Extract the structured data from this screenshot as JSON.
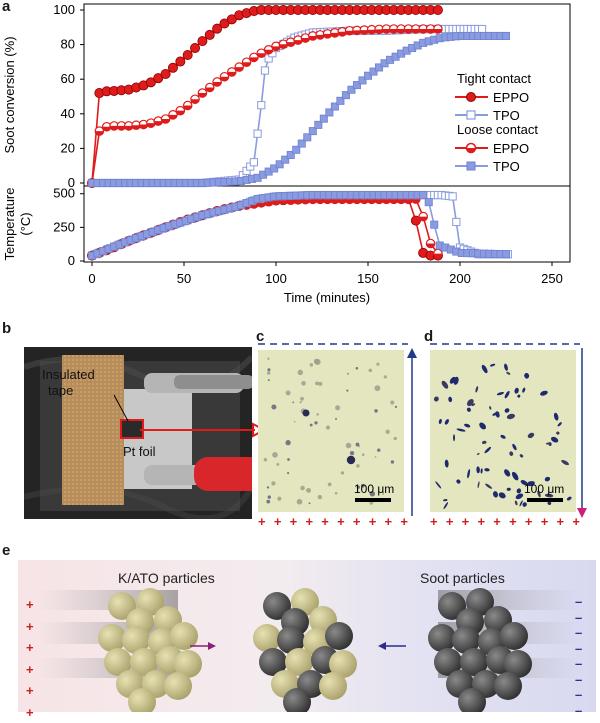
{
  "panels": {
    "a": {
      "letter": "a",
      "top": {
        "ylabel": "Soot conversion (%)",
        "yticks": [
          "0",
          "20",
          "40",
          "60",
          "80",
          "100"
        ]
      },
      "bottom": {
        "ylabel_line1": "Temperature",
        "ylabel_line2": "(°C)",
        "yticks": [
          "0",
          "250",
          "500"
        ]
      },
      "xlabel": "Time (minutes)",
      "xticks": [
        "0",
        "50",
        "100",
        "150",
        "200",
        "250"
      ],
      "legend": {
        "group1": "Tight contact",
        "group1_eppo": "EPPO",
        "group1_tpo": "TPO",
        "group2": "Loose contact",
        "group2_eppo": "EPPO",
        "group2_tpo": "TPO"
      }
    },
    "b": {
      "letter": "b",
      "label_tape_1": "Insulated",
      "label_tape_2": "tape",
      "label_foil": "Pt foil"
    },
    "c": {
      "letter": "c",
      "scale": "100 μm",
      "plus_signs": [
        "+",
        "+",
        "+",
        "+",
        "+",
        "+",
        "+",
        "+",
        "+",
        "+",
        "+",
        "+"
      ]
    },
    "d": {
      "letter": "d",
      "scale": "100 μm",
      "plus_signs": [
        "+",
        "+",
        "+",
        "+",
        "+",
        "+",
        "+",
        "+",
        "+",
        "+",
        "+",
        "+"
      ]
    },
    "e": {
      "letter": "e",
      "left_label": "K/ATO particles",
      "right_label": "Soot particles",
      "plus_signs": [
        "+",
        "+",
        "+",
        "+",
        "+",
        "+",
        "+"
      ],
      "minus_signs": [
        "–",
        "–",
        "–",
        "–",
        "–",
        "–",
        "–",
        "–"
      ]
    }
  },
  "colors": {
    "eppo": "#e01b1b",
    "tpo": "#8a9be0",
    "positive": "#cc1f1f",
    "negative": "#223a8a",
    "katoParticle": "#c9c28f",
    "sootParticle": "#505050"
  },
  "chart_data": [
    {
      "type": "line",
      "title": "",
      "xlabel": "Time (minutes)",
      "ylabel": "Soot conversion (%)",
      "xlim": [
        0,
        250
      ],
      "ylim": [
        0,
        100
      ],
      "series": [
        {
          "name": "EPPO",
          "group": "Tight contact",
          "x": [
            0,
            2,
            4,
            6,
            10,
            20,
            30,
            40,
            50,
            60,
            70,
            80,
            90,
            100,
            120,
            140,
            160,
            180,
            190
          ],
          "y": [
            0,
            42,
            52,
            53,
            53,
            54,
            57,
            63,
            72,
            82,
            91,
            97,
            100,
            100,
            100,
            100,
            100,
            100,
            100
          ]
        },
        {
          "name": "TPO",
          "group": "Tight contact",
          "x": [
            0,
            20,
            40,
            60,
            80,
            88,
            92,
            94,
            96,
            100,
            110,
            120,
            140,
            160,
            180,
            200,
            212
          ],
          "y": [
            0,
            0,
            0,
            0,
            2,
            12,
            45,
            65,
            72,
            78,
            84,
            87,
            88,
            88,
            89,
            89,
            89
          ]
        },
        {
          "name": "EPPO",
          "group": "Loose contact",
          "x": [
            0,
            2,
            4,
            6,
            10,
            20,
            30,
            40,
            50,
            60,
            70,
            80,
            90,
            100,
            120,
            140,
            160,
            180,
            190
          ],
          "y": [
            0,
            20,
            30,
            32,
            33,
            33,
            34,
            37,
            43,
            52,
            60,
            67,
            74,
            79,
            85,
            88,
            89,
            89,
            89
          ]
        },
        {
          "name": "TPO",
          "group": "Loose contact",
          "x": [
            0,
            40,
            60,
            80,
            90,
            100,
            110,
            120,
            130,
            140,
            150,
            160,
            170,
            180,
            190,
            200,
            210,
            226
          ],
          "y": [
            0,
            0,
            0,
            1,
            3,
            9,
            18,
            30,
            42,
            53,
            62,
            70,
            76,
            81,
            84,
            85,
            85,
            85
          ]
        }
      ]
    },
    {
      "type": "line",
      "title": "",
      "xlabel": "Time (minutes)",
      "ylabel": "Temperature (°C)",
      "xlim": [
        0,
        250
      ],
      "ylim": [
        0,
        550
      ],
      "series": [
        {
          "name": "EPPO",
          "group": "Tight contact",
          "x": [
            0,
            10,
            20,
            30,
            40,
            50,
            60,
            70,
            80,
            90,
            100,
            120,
            140,
            160,
            172,
            176,
            180,
            184,
            190
          ],
          "y": [
            40,
            90,
            150,
            200,
            250,
            300,
            340,
            380,
            410,
            430,
            450,
            460,
            460,
            460,
            460,
            300,
            60,
            40,
            40
          ]
        },
        {
          "name": "TPO",
          "group": "Tight contact",
          "x": [
            0,
            20,
            40,
            60,
            80,
            90,
            100,
            120,
            140,
            160,
            180,
            190,
            196,
            200,
            210,
            226
          ],
          "y": [
            40,
            150,
            250,
            340,
            410,
            460,
            480,
            490,
            490,
            490,
            490,
            490,
            480,
            100,
            50,
            50
          ]
        },
        {
          "name": "EPPO",
          "group": "Loose contact",
          "x": [
            0,
            10,
            20,
            30,
            40,
            50,
            60,
            70,
            80,
            90,
            100,
            120,
            140,
            160,
            178,
            182,
            186,
            190
          ],
          "y": [
            40,
            90,
            150,
            200,
            250,
            300,
            340,
            380,
            410,
            430,
            450,
            460,
            460,
            460,
            460,
            200,
            60,
            50
          ]
        },
        {
          "name": "TPO",
          "group": "Loose contact",
          "x": [
            0,
            20,
            40,
            60,
            80,
            90,
            100,
            120,
            140,
            160,
            180,
            184,
            188,
            200,
            226
          ],
          "y": [
            40,
            150,
            250,
            340,
            410,
            460,
            480,
            490,
            490,
            490,
            490,
            420,
            120,
            60,
            50
          ]
        }
      ]
    }
  ]
}
